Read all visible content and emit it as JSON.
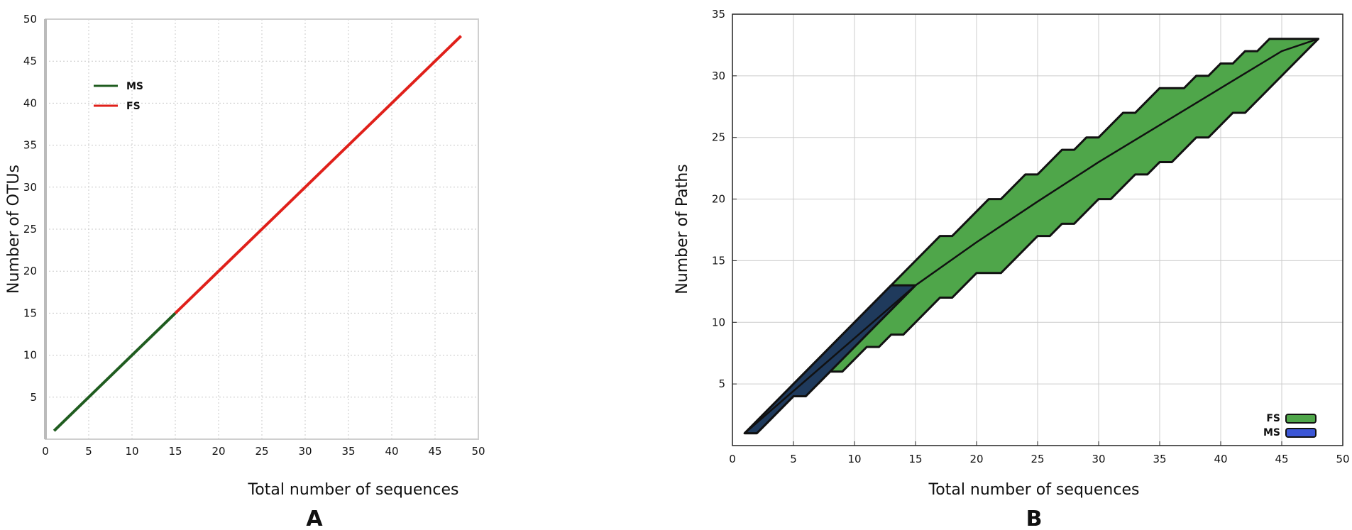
{
  "chart_data": [
    {
      "panel_label": "A",
      "type": "line",
      "xlabel": "Total number of sequences",
      "ylabel": "Number of OTUs",
      "xlim": [
        0,
        50
      ],
      "ylim": [
        0,
        50
      ],
      "x_ticks": [
        0,
        5,
        10,
        15,
        20,
        25,
        30,
        35,
        40,
        45,
        50
      ],
      "y_ticks": [
        5,
        10,
        15,
        20,
        25,
        30,
        35,
        40,
        45,
        50
      ],
      "grid": true,
      "legend_position": "top-left",
      "series": [
        {
          "name": "MS",
          "color": "#1f5c1f",
          "x": [
            1,
            15
          ],
          "y": [
            1,
            15
          ]
        },
        {
          "name": "FS",
          "color": "#e0201a",
          "x": [
            15,
            48
          ],
          "y": [
            15,
            48
          ]
        }
      ]
    },
    {
      "panel_label": "B",
      "type": "area",
      "xlabel": "Total number of sequences",
      "ylabel": "Number of Paths",
      "xlim": [
        0,
        50
      ],
      "ylim": [
        0,
        35
      ],
      "x_ticks": [
        0,
        5,
        10,
        15,
        20,
        25,
        30,
        35,
        40,
        45,
        50
      ],
      "y_ticks": [
        5,
        10,
        15,
        20,
        25,
        30,
        35
      ],
      "grid": true,
      "legend_position": "bottom-right",
      "series": [
        {
          "name": "FS",
          "fill": "#4fa64a",
          "x": [
            1,
            2,
            3,
            4,
            5,
            6,
            7,
            8,
            9,
            10,
            11,
            12,
            13,
            14,
            15,
            16,
            17,
            18,
            19,
            20,
            21,
            22,
            23,
            24,
            25,
            26,
            27,
            28,
            29,
            30,
            31,
            32,
            33,
            34,
            35,
            36,
            37,
            38,
            39,
            40,
            41,
            42,
            43,
            44,
            45,
            46,
            47,
            48
          ],
          "upper": [
            1,
            2,
            3,
            4,
            5,
            6,
            7,
            8,
            9,
            10,
            11,
            12,
            13,
            14,
            15,
            16,
            17,
            17,
            18,
            19,
            20,
            20,
            21,
            22,
            22,
            23,
            24,
            24,
            25,
            25,
            26,
            27,
            27,
            28,
            29,
            29,
            29,
            30,
            30,
            31,
            31,
            32,
            32,
            33,
            33,
            33,
            33,
            33
          ],
          "lower": [
            1,
            1,
            2,
            3,
            4,
            4,
            5,
            6,
            6,
            7,
            8,
            8,
            9,
            9,
            10,
            11,
            12,
            12,
            13,
            14,
            14,
            14,
            15,
            16,
            17,
            17,
            18,
            18,
            19,
            20,
            20,
            21,
            22,
            22,
            23,
            23,
            24,
            25,
            25,
            26,
            27,
            27,
            28,
            29,
            30,
            31,
            32,
            33
          ],
          "mean_x": [
            1,
            5,
            10,
            15,
            20,
            25,
            30,
            35,
            40,
            45,
            48
          ],
          "mean_y": [
            1,
            5,
            9.5,
            13,
            16.5,
            19.8,
            23,
            26,
            29,
            32,
            33
          ]
        },
        {
          "name": "MS",
          "fill": "#1f3a5c",
          "x": [
            1,
            2,
            3,
            4,
            5,
            6,
            7,
            8,
            9,
            10,
            11,
            12,
            13,
            14,
            15
          ],
          "upper": [
            1,
            2,
            3,
            4,
            5,
            6,
            7,
            8,
            9,
            10,
            11,
            12,
            13,
            13,
            13
          ],
          "lower": [
            1,
            1,
            2,
            3,
            4,
            4,
            5,
            6,
            7,
            8,
            9,
            10,
            11,
            12,
            13
          ],
          "mean_x": [
            1,
            15
          ],
          "mean_y": [
            1,
            13
          ]
        }
      ]
    }
  ]
}
